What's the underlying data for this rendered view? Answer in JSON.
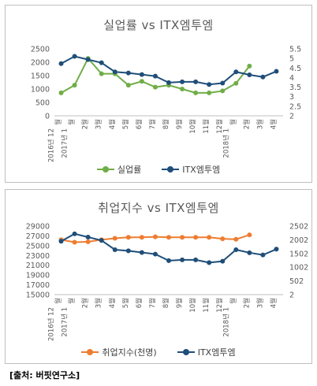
{
  "source_label": "[출처: 버핏연구소]",
  "colors": {
    "unemployment": "#70ad47",
    "itx": "#1f4e79",
    "employment": "#ed7d31",
    "axis": "#595959",
    "grid": "#d9d9d9"
  },
  "chart_data": [
    {
      "type": "line",
      "title": "실업률 vs ITX엠투엠",
      "categories": [
        "2016년 12월",
        "2017년 1월",
        "2월",
        "3월",
        "4월",
        "5월",
        "6월",
        "7월",
        "8월",
        "9월",
        "10월",
        "11월",
        "12월",
        "2018년 1월",
        "2월",
        "3월",
        "4월"
      ],
      "category_lines": [
        [
          "2016년 12",
          "월"
        ],
        [
          "2017년 1",
          "월"
        ],
        [
          "2",
          "월"
        ],
        [
          "3",
          "월"
        ],
        [
          "4",
          "월"
        ],
        [
          "5",
          "월"
        ],
        [
          "6",
          "월"
        ],
        [
          "7",
          "월"
        ],
        [
          "8",
          "월"
        ],
        [
          "9",
          "월"
        ],
        [
          "10",
          "월"
        ],
        [
          "11",
          "월"
        ],
        [
          "12",
          "월"
        ],
        [
          "2018년 1",
          "월"
        ],
        [
          "2",
          "월"
        ],
        [
          "3",
          "월"
        ],
        [
          "4",
          "월"
        ]
      ],
      "y_left": {
        "min": 0,
        "max": 2500,
        "ticks": [
          0,
          500,
          1000,
          1500,
          2000,
          2500
        ]
      },
      "y_right": {
        "min": 2,
        "max": 5.5,
        "ticks": [
          "2",
          "2.5",
          "3",
          "3.5",
          "4",
          "4.5",
          "5",
          "5.5"
        ]
      },
      "grid": false,
      "legend_position": "bottom",
      "series": [
        {
          "name": "실업률",
          "axis": "right",
          "color": "#70ad47",
          "values": [
            3.2,
            3.6,
            5.0,
            4.2,
            4.2,
            3.6,
            3.8,
            3.5,
            3.6,
            3.4,
            3.2,
            3.2,
            3.3,
            3.7,
            4.6,
            null,
            null
          ]
        },
        {
          "name": "ITX엠투엠",
          "axis": "left",
          "color": "#1f4e79",
          "values": [
            1950,
            2220,
            2100,
            1980,
            1640,
            1600,
            1540,
            1480,
            1240,
            1270,
            1270,
            1170,
            1220,
            1640,
            1530,
            1450,
            1660
          ]
        }
      ]
    },
    {
      "type": "line",
      "title": "취업지수 vs ITX엠투엠",
      "categories": [
        "2016년 12월",
        "2017년 1월",
        "2월",
        "3월",
        "4월",
        "5월",
        "6월",
        "7월",
        "8월",
        "9월",
        "10월",
        "11월",
        "12월",
        "2018년 1월",
        "2월",
        "3월",
        "4월"
      ],
      "category_lines": [
        [
          "2016년 12",
          "월"
        ],
        [
          "2017년 1",
          "월"
        ],
        [
          "2",
          "월"
        ],
        [
          "3",
          "월"
        ],
        [
          "4",
          "월"
        ],
        [
          "5",
          "월"
        ],
        [
          "6",
          "월"
        ],
        [
          "7",
          "월"
        ],
        [
          "8",
          "월"
        ],
        [
          "9",
          "월"
        ],
        [
          "10",
          "월"
        ],
        [
          "11",
          "월"
        ],
        [
          "12",
          "월"
        ],
        [
          "2018년 1",
          "월"
        ],
        [
          "2",
          "월"
        ],
        [
          "3",
          "월"
        ],
        [
          "4",
          "월"
        ]
      ],
      "y_left": {
        "min": 15000,
        "max": 29000,
        "ticks": [
          15000,
          17000,
          19000,
          21000,
          23000,
          25000,
          27000,
          29000
        ]
      },
      "y_right": {
        "min": 2,
        "max": 2502,
        "ticks": [
          2,
          502,
          1002,
          1502,
          2002,
          2502
        ]
      },
      "grid": false,
      "legend_position": "bottom",
      "series": [
        {
          "name": "취업지수(천명)",
          "axis": "left",
          "color": "#ed7d31",
          "values": [
            26200,
            25700,
            25800,
            26200,
            26500,
            26700,
            26700,
            26800,
            26700,
            26700,
            26700,
            26700,
            26400,
            26300,
            27200,
            null,
            null
          ]
        },
        {
          "name": "ITX엠투엠",
          "axis": "right",
          "color": "#1f4e79",
          "values": [
            1950,
            2220,
            2100,
            1980,
            1640,
            1600,
            1540,
            1480,
            1240,
            1270,
            1270,
            1170,
            1220,
            1640,
            1530,
            1450,
            1660
          ]
        }
      ]
    }
  ]
}
